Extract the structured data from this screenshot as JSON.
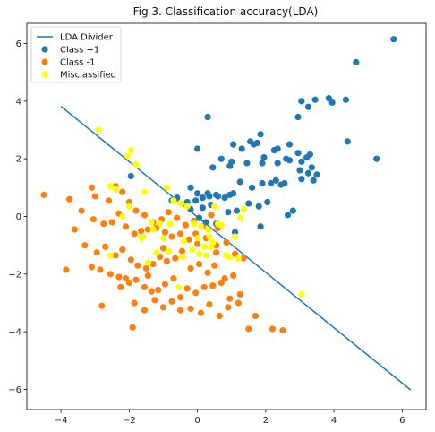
{
  "chart_data": {
    "type": "scatter",
    "title": "Fig 3. Classification accuracy(LDA)",
    "xlim": [
      -5.0,
      6.7
    ],
    "ylim": [
      -6.7,
      6.7
    ],
    "xticks": [
      -4,
      -2,
      0,
      2,
      4,
      6
    ],
    "yticks": [
      -6,
      -4,
      -2,
      0,
      2,
      4,
      6
    ],
    "xtick_labels": [
      "−4",
      "−2",
      "0",
      "2",
      "4",
      "6"
    ],
    "ytick_labels": [
      "−6",
      "−4",
      "−2",
      "0",
      "2",
      "4",
      "6"
    ],
    "grid": false,
    "legend_position": "top-left",
    "colors": {
      "divider": "#1f77b4",
      "class_pos": "#1f77b4",
      "class_neg": "#ff7f0e",
      "misclassified": "#ffff00"
    },
    "divider": {
      "name": "LDA Divider",
      "x": [
        -4.0,
        6.25
      ],
      "y": [
        3.82,
        -6.02
      ]
    },
    "series": [
      {
        "name": "Class +1",
        "x": [
          5.75,
          4.65,
          3.45,
          3.05,
          4.35,
          3.25,
          2.95,
          3.85,
          1.85,
          2.25,
          2.35,
          1.9,
          2.6,
          2.95,
          3.05,
          3.95,
          4.4,
          3.2,
          3.35,
          3.5,
          2.7,
          5.25,
          0.3,
          1.55,
          1.65,
          1.05,
          1.3,
          1.75,
          1.0,
          0.7,
          0.0,
          0.45,
          0.95,
          1.45,
          1.95,
          2.35,
          2.55,
          2.7,
          3.0,
          3.25,
          3.4,
          3.05,
          2.45,
          2.15,
          2.3,
          1.9,
          1.6,
          1.25,
          1.05,
          0.95,
          0.8,
          0.55,
          0.3,
          0.15,
          -0.05,
          -0.3,
          -0.6,
          -0.75,
          -0.2,
          0.0,
          0.15,
          0.4,
          0.6,
          0.9,
          1.15,
          1.5,
          1.8,
          2.05,
          2.65,
          0.05,
          -0.2,
          0.35,
          -1.95,
          2.8,
          0.25,
          1.85,
          1.1,
          0.55,
          3.3
        ],
        "y": [
          6.15,
          5.35,
          4.05,
          4.0,
          4.05,
          3.8,
          3.45,
          4.1,
          2.85,
          2.3,
          2.35,
          1.85,
          2.0,
          2.2,
          1.9,
          3.95,
          2.6,
          2.05,
          1.7,
          1.45,
          2.5,
          2.0,
          3.45,
          2.6,
          2.5,
          2.5,
          2.35,
          2.55,
          1.9,
          2.0,
          2.35,
          1.7,
          1.75,
          1.85,
          2.05,
          1.85,
          1.15,
          1.95,
          1.6,
          1.5,
          1.25,
          1.3,
          1.1,
          1.15,
          1.25,
          1.15,
          1.0,
          1.2,
          0.8,
          0.75,
          0.65,
          0.75,
          0.8,
          0.65,
          0.55,
          0.5,
          0.65,
          0.55,
          0.25,
          0.8,
          0.3,
          0.4,
          0.7,
          0.15,
          0.2,
          0.45,
          0.35,
          0.5,
          0.05,
          -0.05,
          1.0,
          0.7,
          1.4,
          0.2,
          -0.2,
          -0.35,
          -0.55,
          -0.25,
          2.15
        ]
      },
      {
        "name": "Class -1",
        "x": [
          -4.5,
          -3.75,
          -3.1,
          -3.0,
          -2.6,
          -2.4,
          -2.2,
          -2.0,
          -1.8,
          -1.55,
          -1.3,
          -1.05,
          -0.85,
          -0.6,
          -0.35,
          -0.1,
          0.15,
          0.4,
          0.6,
          -3.6,
          -3.4,
          -3.05,
          -2.75,
          -2.5,
          -2.3,
          -2.1,
          -1.85,
          -1.65,
          -1.45,
          -1.2,
          -0.95,
          -0.75,
          -0.5,
          -0.25,
          0.0,
          0.25,
          0.55,
          0.85,
          1.1,
          1.35,
          -3.3,
          -2.95,
          -2.7,
          -2.4,
          -2.2,
          -1.95,
          -1.75,
          -1.5,
          -1.3,
          -1.1,
          -0.9,
          -0.65,
          -0.45,
          -0.2,
          0.05,
          0.3,
          0.5,
          0.8,
          1.05,
          -3.1,
          -2.85,
          -2.55,
          -2.3,
          -2.0,
          -1.8,
          -1.55,
          -1.35,
          -1.15,
          -0.95,
          -0.7,
          -0.5,
          -0.3,
          -0.05,
          0.2,
          0.45,
          0.7,
          0.95,
          1.25,
          -3.85,
          -2.8,
          -2.25,
          -1.85,
          -1.55,
          -1.25,
          -1.0,
          -0.75,
          -0.5,
          -0.2,
          0.1,
          0.35,
          0.65,
          0.9,
          1.2,
          1.5,
          1.7,
          2.2,
          2.5,
          -1.9,
          -1.45,
          -0.05,
          -1.0,
          -2.1,
          0.55
        ],
        "y": [
          0.75,
          0.6,
          1.0,
          0.7,
          0.55,
          1.05,
          0.85,
          0.5,
          0.2,
          0.05,
          -0.2,
          -0.1,
          0.15,
          -0.05,
          -0.3,
          -0.15,
          -0.35,
          0.05,
          -0.4,
          -0.45,
          0.2,
          -0.1,
          -0.25,
          -0.2,
          0.1,
          -0.35,
          -0.6,
          -0.5,
          -0.45,
          -0.4,
          -0.55,
          -0.7,
          -0.6,
          -0.8,
          -0.95,
          -0.75,
          -1.0,
          -0.9,
          -1.3,
          -1.45,
          -1.0,
          -1.25,
          -1.05,
          -1.35,
          -1.15,
          -1.5,
          -1.7,
          -1.8,
          -1.65,
          -1.4,
          -1.55,
          -1.45,
          -1.2,
          -1.8,
          -1.65,
          -1.95,
          -1.7,
          -2.15,
          -2.05,
          -1.75,
          -1.85,
          -2.0,
          -2.1,
          -2.3,
          -2.2,
          -2.45,
          -2.6,
          -2.55,
          -2.35,
          -2.15,
          -2.8,
          -2.5,
          -2.65,
          -2.45,
          -2.4,
          -2.3,
          -2.85,
          -2.7,
          -1.85,
          -3.1,
          -2.45,
          -3.0,
          -3.25,
          -2.9,
          -3.15,
          -2.95,
          -3.25,
          -3.2,
          -3.35,
          -3.05,
          -3.45,
          -3.15,
          -3.0,
          -3.9,
          -3.45,
          -3.9,
          -3.95,
          -3.85,
          -2.05,
          -0.6,
          -1.1,
          -2.15,
          -1.25
        ],
        "misclassified_in_series": false
      },
      {
        "name": "Misclassified",
        "x": [
          -2.9,
          -2.55,
          -2.4,
          -2.0,
          -1.95,
          -1.8,
          -1.55,
          -1.35,
          -1.1,
          -0.9,
          -0.7,
          -0.5,
          -0.3,
          -0.1,
          0.1,
          0.3,
          0.5,
          0.7,
          -1.6,
          -1.3,
          -1.0,
          -0.8,
          -0.4,
          0.0,
          0.2,
          0.35,
          0.6,
          0.95,
          1.1,
          1.25,
          -2.2,
          -1.65,
          -1.2,
          -0.85,
          -0.45,
          -0.15,
          0.25,
          0.45,
          0.85,
          1.2,
          1.35,
          -2.55,
          -1.45,
          -0.55,
          0.05,
          0.4,
          3.05,
          -2.05
        ],
        "y": [
          3.0,
          1.05,
          0.95,
          0.35,
          2.3,
          1.8,
          0.85,
          -0.2,
          -0.25,
          1.0,
          0.55,
          0.45,
          0.35,
          -0.25,
          -0.35,
          -0.45,
          0.35,
          -0.3,
          -0.7,
          -0.45,
          -0.75,
          -0.25,
          -0.85,
          -0.75,
          -1.05,
          -0.7,
          -0.25,
          -1.4,
          -0.7,
          -0.05,
          0.0,
          -0.75,
          -1.25,
          -1.2,
          -1.4,
          -1.15,
          -1.35,
          -0.9,
          -1.35,
          -1.45,
          0.25,
          -1.35,
          -1.6,
          -2.45,
          -1.3,
          -1.05,
          -2.7,
          2.1
        ]
      }
    ]
  }
}
